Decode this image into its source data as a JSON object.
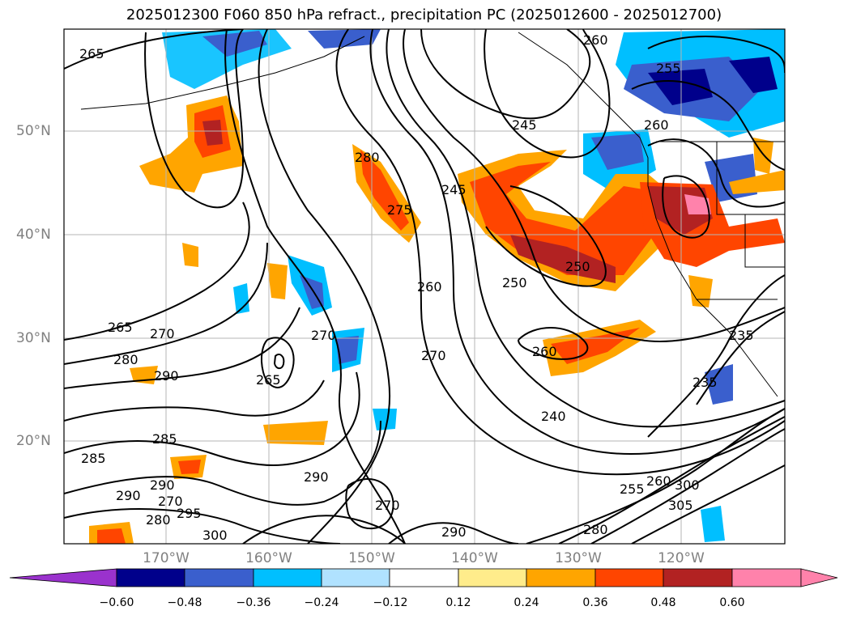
{
  "title": "2025012300 F060 850 hPa refract., precipitation PC (2025012600 - 2025012700)",
  "map": {
    "latitude_labels": [
      "50°N",
      "40°N",
      "30°N",
      "20°N"
    ],
    "longitude_labels": [
      "170°W",
      "160°W",
      "150°W",
      "140°W",
      "130°W",
      "120°W"
    ],
    "contour_labels": [
      "265",
      "260",
      "255",
      "260",
      "245",
      "245",
      "280",
      "275",
      "250",
      "250",
      "265",
      "270",
      "270",
      "260",
      "260",
      "270",
      "265",
      "290",
      "280",
      "285",
      "285",
      "290",
      "290",
      "270",
      "295",
      "300",
      "290",
      "270",
      "290",
      "280",
      "240",
      "235",
      "235",
      "255",
      "280",
      "300",
      "305",
      "260"
    ]
  },
  "colorbar": {
    "ticks": [
      "−0.60",
      "−0.48",
      "−0.36",
      "−0.24",
      "−0.12",
      "0.12",
      "0.24",
      "0.36",
      "0.48",
      "0.60"
    ],
    "colors": [
      "#9a32cd",
      "#00008b",
      "#3a5fcd",
      "#00bfff",
      "#b0e2ff",
      "#ffffff",
      "#ffec8b",
      "#ffa500",
      "#ff4500",
      "#b22222",
      "#ff82ab",
      "#ff82ab"
    ]
  }
}
